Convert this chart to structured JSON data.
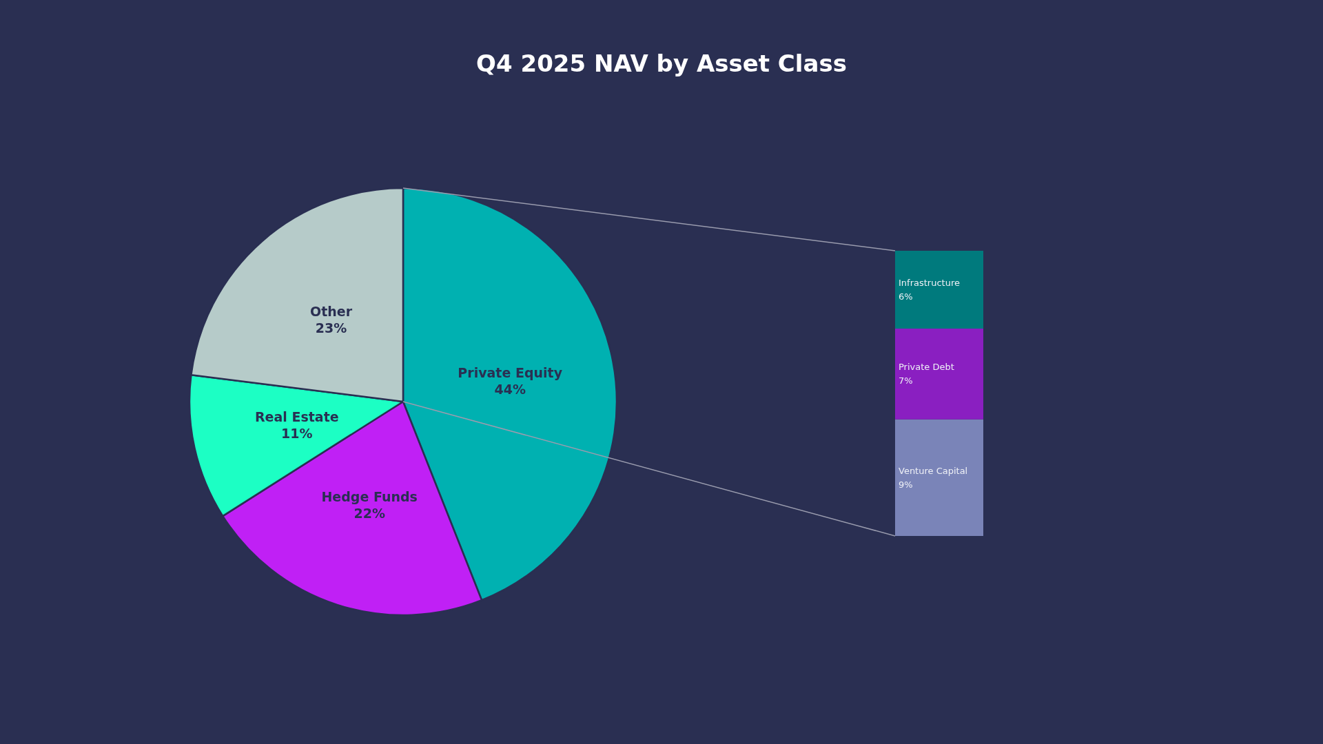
{
  "chart_data": [
    {
      "type": "pie",
      "title": "Q4 2025 NAV by Asset Class",
      "categories": [
        "Private Equity",
        "Hedge Funds",
        "Real Estate",
        "Other"
      ],
      "values": [
        44,
        22,
        11,
        23
      ],
      "colors": [
        "#00b1b1",
        "#c020f5",
        "#1cffc4",
        "#b6cbc9"
      ],
      "value_labels": [
        "44%",
        "22%",
        "11%",
        "23%"
      ]
    },
    {
      "type": "bar",
      "stacked": true,
      "categories": [
        null
      ],
      "series": [
        {
          "name": "Venture Capital",
          "color": "#7a84b8",
          "values": [
            9
          ],
          "value_labels": [
            "9%"
          ]
        },
        {
          "name": "Private Debt",
          "color": "#8a1fc1",
          "values": [
            7
          ],
          "value_labels": [
            "7%"
          ]
        },
        {
          "name": "Infrastructure",
          "color": "#007a7d",
          "values": [
            6
          ],
          "value_labels": [
            "6%"
          ]
        }
      ]
    }
  ]
}
